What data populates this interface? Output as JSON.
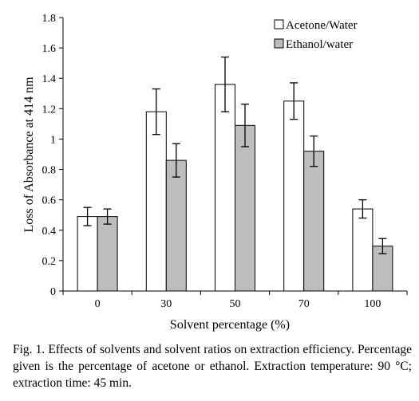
{
  "chart_data": {
    "type": "bar",
    "categories": [
      "0",
      "30",
      "50",
      "70",
      "100"
    ],
    "series": [
      {
        "name": "Acetone/Water",
        "color": "#ffffff",
        "values": [
          0.49,
          1.18,
          1.36,
          1.25,
          0.54
        ],
        "errors": [
          0.06,
          0.15,
          0.18,
          0.12,
          0.06
        ]
      },
      {
        "name": "Ethanol/water",
        "color": "#bdbdbd",
        "values": [
          0.49,
          0.86,
          1.09,
          0.92,
          0.295
        ],
        "errors": [
          0.05,
          0.11,
          0.14,
          0.1,
          0.05
        ]
      }
    ],
    "xlabel": "Solvent percentage (%)",
    "ylabel": "Loss of Absorbance at 414 nm",
    "ylim": [
      0,
      1.8
    ],
    "yticks": [
      0,
      0.2,
      0.4,
      0.6,
      0.8,
      1,
      1.2,
      1.4,
      1.6,
      1.8
    ],
    "ytick_labels": [
      "0",
      "0.2",
      "0.4",
      "0.6",
      "0.8",
      "1",
      "1.2",
      "1.4",
      "1.6",
      "1.8"
    ],
    "grid": false,
    "legend": "top-right"
  },
  "caption": "Fig. 1. Effects of solvents and solvent ratios on extraction efficiency. Percentage given is the percentage of acetone or ethanol. Extraction temperature: 90 °C; extraction time: 45 min."
}
